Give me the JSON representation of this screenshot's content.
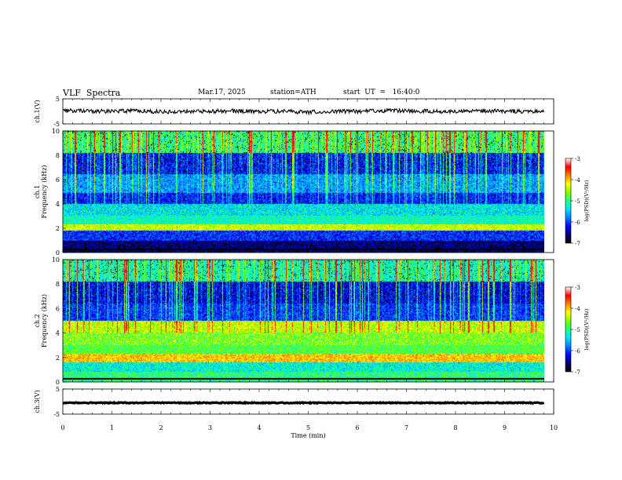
{
  "header": {
    "title": "VLF  Spectra",
    "date": "Mar.17, 2025",
    "station": "station=ATH",
    "start_ut": "start  UT  =   16:40:0"
  },
  "chart_data": [
    {
      "type": "line",
      "name_label": "ch.1(V)",
      "ylabel": "ch.1(V)",
      "ylim": [
        -5,
        5
      ],
      "yticks": [
        "5",
        "-5"
      ],
      "xlim": [
        0,
        10
      ],
      "description_values": {
        "approx_level": 0,
        "approx_noise_amplitude": 0.7
      },
      "x": [
        0.0,
        0.5,
        1.0,
        1.5,
        2.0,
        2.5,
        3.0,
        3.5,
        4.0,
        4.5,
        5.0,
        5.5,
        6.0,
        6.5,
        7.0,
        7.5,
        8.0,
        8.5,
        9.0,
        9.5,
        9.8
      ],
      "y": [
        0.2,
        0.1,
        0.0,
        0.3,
        -0.2,
        0.1,
        0.0,
        0.2,
        -0.1,
        0.0,
        -0.3,
        0.1,
        0.0,
        0.2,
        0.3,
        0.0,
        -0.1,
        0.2,
        0.1,
        0.0,
        0.2
      ]
    },
    {
      "type": "heatmap",
      "ylabel_line1": "ch.1",
      "ylabel_line2": "Frequency  (kHz)",
      "ylim": [
        0,
        10
      ],
      "yticks": [
        "0",
        "2",
        "4",
        "6",
        "8",
        "10"
      ],
      "xlim": [
        0,
        10
      ],
      "colorbar": {
        "label": "log(PSD)(V²/Hz)",
        "range": [
          -7,
          -3
        ],
        "ticks": [
          "-3",
          "-4",
          "-5",
          "-6",
          "-7"
        ]
      },
      "bands_khz": [
        {
          "freq": 0.5,
          "level": -6.8
        },
        {
          "freq": 1.5,
          "level": -6.2
        },
        {
          "freq": 2.2,
          "level": -4.3
        },
        {
          "freq": 2.5,
          "level": -5.2
        },
        {
          "freq": 3.6,
          "level": -5.4
        },
        {
          "freq": 4.4,
          "level": -6.3
        },
        {
          "freq": 5.5,
          "level": -5.8
        },
        {
          "freq": 7.5,
          "level": -6.3
        },
        {
          "freq": 9.0,
          "level": -5.0
        }
      ]
    },
    {
      "type": "heatmap",
      "ylabel_line1": "ch.2",
      "ylabel_line2": "Frequency  (kHz)",
      "ylim": [
        0,
        10
      ],
      "yticks": [
        "0",
        "2",
        "4",
        "6",
        "8",
        "10"
      ],
      "xlim": [
        0,
        10
      ],
      "colorbar": {
        "label": "log(PSD)(V²/Hz)",
        "range": [
          -7,
          -3
        ],
        "ticks": [
          "-3",
          "-4",
          "-5",
          "-6",
          "-7"
        ]
      },
      "bands_khz": [
        {
          "freq": 0.5,
          "level": -5.0
        },
        {
          "freq": 1.2,
          "level": -5.3
        },
        {
          "freq": 2.1,
          "level": -3.9
        },
        {
          "freq": 2.6,
          "level": -4.8
        },
        {
          "freq": 3.5,
          "level": -4.6
        },
        {
          "freq": 4.6,
          "level": -4.4
        },
        {
          "freq": 5.4,
          "level": -6.2
        },
        {
          "freq": 7.5,
          "level": -6.4
        },
        {
          "freq": 9.0,
          "level": -5.2
        }
      ]
    },
    {
      "type": "line",
      "ylabel": "ch.3(V)",
      "ylim": [
        -5,
        5
      ],
      "yticks": [
        "5",
        "-5"
      ],
      "xlim": [
        0,
        10
      ],
      "x": [
        0.0,
        9.8
      ],
      "y": [
        -0.5,
        -0.5
      ]
    }
  ],
  "xaxis": {
    "label": "Time  (min)",
    "ticks": [
      "0",
      "1",
      "2",
      "3",
      "4",
      "5",
      "6",
      "7",
      "8",
      "9",
      "10"
    ]
  },
  "colors": {
    "colormap": [
      "#000000",
      "#00006a",
      "#0000ff",
      "#0080ff",
      "#00e0ff",
      "#20ff80",
      "#80ff00",
      "#ffff00",
      "#ff8000",
      "#ff0000",
      "#ffffff"
    ],
    "line": "#000000"
  }
}
